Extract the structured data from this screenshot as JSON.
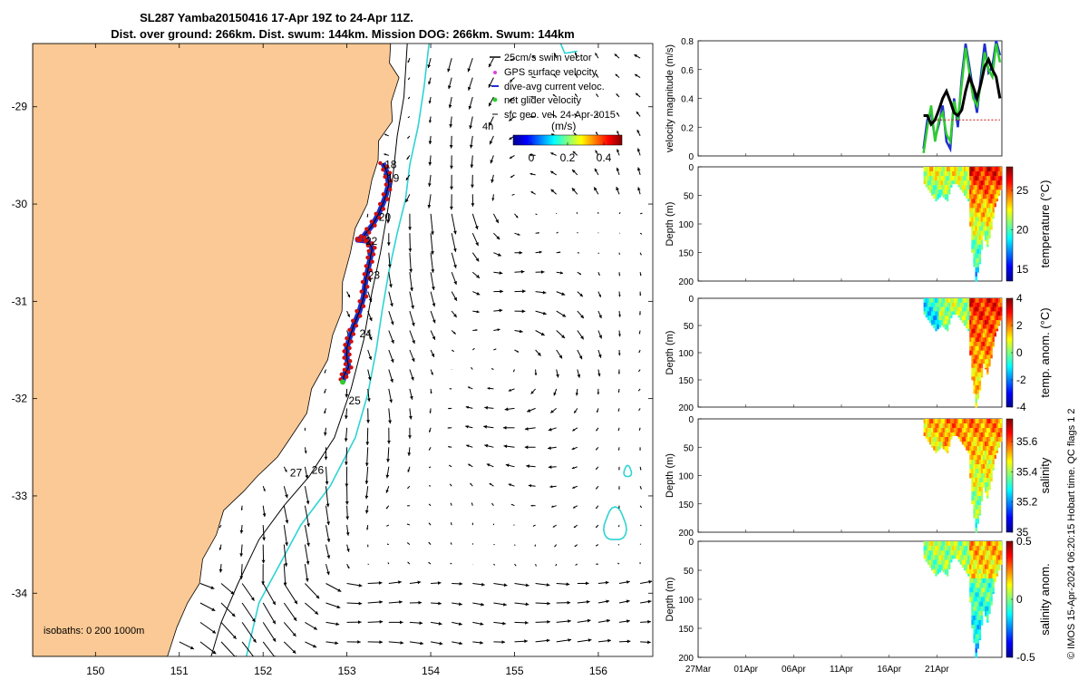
{
  "title_line1": "SL287 Yamba20150416 17-Apr 19Z to 24-Apr 11Z.",
  "title_line2": "Dist. over ground: 266km. Dist. swum: 144km. Mission DOG: 266km. Swum: 144km",
  "colors": {
    "land": "#fbc995",
    "ocean": "#ffffff",
    "isobath200": "#000000",
    "isobath1000": "#2fd3d3",
    "track_blue": "#1f2fd0",
    "track_red": "#d01010",
    "green": "#2ecc2e",
    "black": "#000000"
  },
  "chart_data": [
    {
      "type": "scatter",
      "name": "map",
      "title": "SL287 Yamba20150416 17-Apr 19Z to 24-Apr 11Z.",
      "xlim": [
        149.25,
        156.65
      ],
      "ylim": [
        -34.65,
        -28.35
      ],
      "xticks": [
        "150",
        "151",
        "152",
        "153",
        "154",
        "155",
        "156"
      ],
      "xtick_values": [
        150,
        151,
        152,
        153,
        154,
        155,
        156
      ],
      "yticks": [
        "-29",
        "-30",
        "-31",
        "-32",
        "-33",
        "-34"
      ],
      "ytick_values": [
        -29,
        -30,
        -31,
        -32,
        -33,
        -34
      ],
      "legend": {
        "placement": "top-right",
        "entries": [
          "25cm/s swim vector",
          "GPS surface velocity",
          "dive-avg current veloc.",
          "net glider velocity",
          "sfc geo. vel. 24-Apr-2015"
        ],
        "scale_label": "4h",
        "colorbar_unit": "(m/s)",
        "colorbar_ticks": [
          "0",
          "0.2",
          "0.4"
        ],
        "colorbar_range": [
          -0.1,
          0.5
        ]
      },
      "isobath_label": "isobaths: 0   200  1000m",
      "isobaths": [
        "0",
        "200",
        "1000"
      ],
      "day_labels": [
        {
          "text": "18",
          "lon": 153.45,
          "lat": -29.63
        },
        {
          "text": "19",
          "lon": 153.48,
          "lat": -29.77
        },
        {
          "text": "20",
          "lon": 153.38,
          "lat": -30.17
        },
        {
          "text": "22",
          "lon": 153.22,
          "lat": -30.42
        },
        {
          "text": "23",
          "lon": 153.25,
          "lat": -30.77
        },
        {
          "text": "24",
          "lon": 153.15,
          "lat": -31.37
        },
        {
          "text": "25",
          "lon": 153.02,
          "lat": -32.06
        },
        {
          "text": "26",
          "lon": 152.58,
          "lat": -32.77
        },
        {
          "text": "27",
          "lon": 152.32,
          "lat": -32.8
        }
      ],
      "track": [
        [
          153.43,
          -29.58
        ],
        [
          153.48,
          -29.68
        ],
        [
          153.5,
          -29.8
        ],
        [
          153.45,
          -29.95
        ],
        [
          153.38,
          -30.1
        ],
        [
          153.3,
          -30.22
        ],
        [
          153.2,
          -30.33
        ],
        [
          153.13,
          -30.37
        ],
        [
          153.25,
          -30.38
        ],
        [
          153.3,
          -30.45
        ],
        [
          153.28,
          -30.55
        ],
        [
          153.25,
          -30.68
        ],
        [
          153.22,
          -30.8
        ],
        [
          153.2,
          -30.95
        ],
        [
          153.15,
          -31.1
        ],
        [
          153.08,
          -31.25
        ],
        [
          153.03,
          -31.38
        ],
        [
          153.0,
          -31.48
        ],
        [
          153.0,
          -31.58
        ],
        [
          153.02,
          -31.68
        ],
        [
          152.97,
          -31.75
        ],
        [
          152.95,
          -31.83
        ]
      ]
    },
    {
      "type": "line",
      "name": "velocity",
      "ylabel": "velocity magnitude (m/s)",
      "ylim": [
        0,
        0.8
      ],
      "yticks": [
        "0",
        "0.2",
        "0.4",
        "0.6",
        "0.8"
      ],
      "xlim": [
        0,
        31.8
      ],
      "series": [
        {
          "name": "GPS surface velocity",
          "color": "#1f2fd0",
          "x": [
            23.6,
            24.0,
            24.4,
            24.8,
            25.2,
            25.6,
            26.0,
            26.4,
            26.8,
            27.2,
            27.6,
            28.0,
            28.4,
            28.8,
            29.2,
            29.6,
            30.0,
            30.4,
            30.8,
            31.2,
            31.6
          ],
          "values": [
            0.05,
            0.25,
            0.3,
            0.12,
            0.22,
            0.35,
            0.1,
            0.05,
            0.4,
            0.2,
            0.55,
            0.78,
            0.62,
            0.45,
            0.3,
            0.55,
            0.78,
            0.58,
            0.62,
            0.8,
            0.7
          ]
        },
        {
          "name": "net glider velocity",
          "color": "#2ecc2e",
          "x": [
            23.6,
            24.0,
            24.4,
            24.8,
            25.2,
            25.6,
            26.0,
            26.4,
            26.8,
            27.2,
            27.6,
            28.0,
            28.4,
            28.8,
            29.2,
            29.6,
            30.0,
            30.4,
            30.8,
            31.2,
            31.6
          ],
          "values": [
            0.02,
            0.2,
            0.35,
            0.1,
            0.25,
            0.3,
            0.15,
            0.1,
            0.38,
            0.25,
            0.5,
            0.75,
            0.58,
            0.4,
            0.35,
            0.5,
            0.72,
            0.6,
            0.55,
            0.78,
            0.65
          ]
        },
        {
          "name": "dive-avg current veloc.",
          "color": "#000000",
          "x": [
            23.6,
            24.0,
            24.4,
            24.8,
            25.2,
            25.6,
            26.0,
            26.4,
            26.8,
            27.2,
            27.6,
            28.0,
            28.4,
            28.8,
            29.2,
            29.6,
            30.0,
            30.4,
            30.8,
            31.2,
            31.6
          ],
          "values": [
            0.28,
            0.28,
            0.22,
            0.25,
            0.32,
            0.4,
            0.45,
            0.38,
            0.3,
            0.28,
            0.32,
            0.45,
            0.55,
            0.48,
            0.4,
            0.5,
            0.62,
            0.67,
            0.6,
            0.55,
            0.4
          ]
        },
        {
          "name": "25cm/s swim vector",
          "color": "#d01010",
          "x": [
            25.0,
            31.6
          ],
          "values": [
            0.25,
            0.25
          ]
        }
      ]
    },
    {
      "type": "heatmap",
      "name": "temperature",
      "ylabel": "Depth (m)",
      "cbar_label": "temperature (°C)",
      "cbar_ticks": [
        "15",
        "20",
        "25"
      ],
      "cbar_tick_values": [
        15,
        20,
        25
      ],
      "cbar_range": [
        13.5,
        28.0
      ],
      "ylim": [
        0,
        200
      ],
      "yticks": [
        "0",
        "50",
        "100",
        "150",
        "200"
      ]
    },
    {
      "type": "heatmap",
      "name": "temp_anom",
      "ylabel": "Depth (m)",
      "cbar_label": "temp. anom. (°C)",
      "cbar_ticks": [
        "-4",
        "-2",
        "0",
        "2",
        "4"
      ],
      "cbar_tick_values": [
        -4,
        -2,
        0,
        2,
        4
      ],
      "cbar_range": [
        -4,
        4
      ],
      "ylim": [
        0,
        200
      ],
      "yticks": [
        "0",
        "50",
        "100",
        "150",
        "200"
      ]
    },
    {
      "type": "heatmap",
      "name": "salinity",
      "ylabel": "Depth (m)",
      "cbar_label": "salinity",
      "cbar_ticks": [
        "35",
        "35.2",
        "35.4",
        "35.6"
      ],
      "cbar_tick_values": [
        35.0,
        35.2,
        35.4,
        35.6
      ],
      "cbar_range": [
        35.0,
        35.75
      ],
      "ylim": [
        0,
        200
      ],
      "yticks": [
        "0",
        "50",
        "100",
        "150",
        "200"
      ]
    },
    {
      "type": "heatmap",
      "name": "sal_anom",
      "ylabel": "Depth (m)",
      "cbar_label": "salinity anom.",
      "cbar_ticks": [
        "-0.5",
        "0",
        "0.5"
      ],
      "cbar_tick_values": [
        -0.5,
        0,
        0.5
      ],
      "cbar_range": [
        -0.5,
        0.5
      ],
      "ylim": [
        0,
        200
      ],
      "yticks": [
        "0",
        "50",
        "100",
        "150",
        "200"
      ]
    }
  ],
  "time_axis": {
    "ticks": [
      "27Mar",
      "01Apr",
      "06Apr",
      "11Apr",
      "16Apr",
      "21Apr"
    ],
    "tick_days": [
      0,
      5,
      10,
      15,
      20,
      25
    ]
  },
  "footer": "© IMOS 15-Apr-2024 06:20:15 Hobart time. QC flags 1  2"
}
